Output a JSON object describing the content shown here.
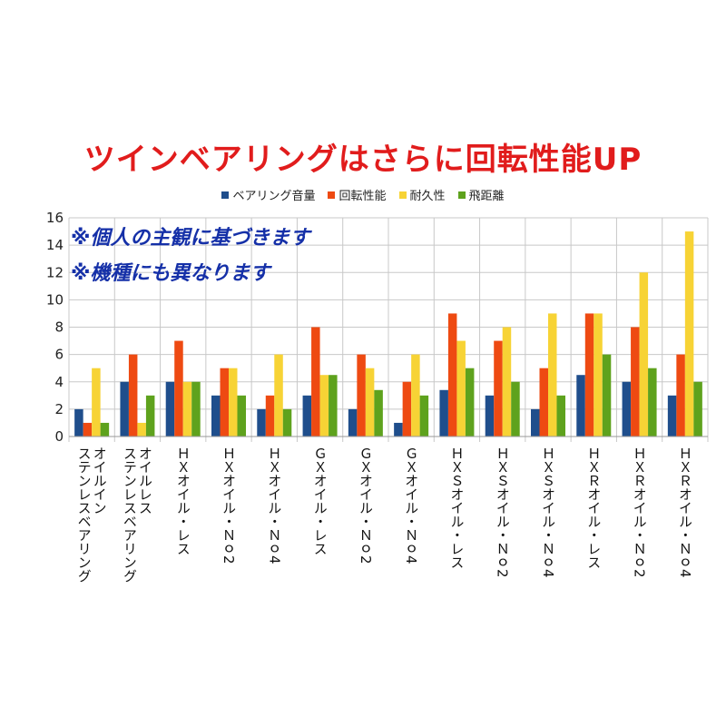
{
  "chart_data": {
    "type": "bar",
    "title": "ツインベアリングはさらに回転性能UP",
    "legend_position": "top",
    "notes": [
      "※個人の主観に基づきます",
      "※機種にも異なります"
    ],
    "ylim": [
      0,
      16
    ],
    "yticks": [
      0,
      2,
      4,
      6,
      8,
      10,
      12,
      14,
      16
    ],
    "grid": true,
    "categories": [
      "オイルイン\nステンレスベアリング",
      "オイルレス\nステンレスベアリング",
      "ＨＸオイル・レス",
      "ＨＸオイル・Ｎｏ2",
      "ＨＸオイル・Ｎｏ4",
      "ＧＸオイル・レス",
      "ＧＸオイル・Ｎｏ2",
      "ＧＸオイル・Ｎｏ4",
      "ＨＸＳオイル・レス",
      "ＨＸＳオイル・Ｎｏ2",
      "ＨＸＳオイル・Ｎｏ4",
      "ＨＸＲオイル・レス",
      "ＨＸＲオイル・Ｎｏ2",
      "ＨＸＲオイル・Ｎｏ4"
    ],
    "series": [
      {
        "name": "ベアリング音量",
        "color": "#1f4e8c",
        "values": [
          2,
          4,
          4,
          3,
          2,
          3,
          2,
          1,
          3.4,
          3,
          2,
          4.5,
          4,
          3
        ]
      },
      {
        "name": "回転性能",
        "color": "#ee4a12",
        "values": [
          1,
          6,
          7,
          5,
          3,
          8,
          6,
          4,
          9,
          7,
          5,
          9,
          8,
          6
        ]
      },
      {
        "name": "耐久性",
        "color": "#f7d335",
        "values": [
          5,
          1,
          4,
          5,
          6,
          4.5,
          5,
          6,
          7,
          8,
          9,
          9,
          12,
          15
        ]
      },
      {
        "name": "飛距離",
        "color": "#5ea21d",
        "values": [
          1,
          3,
          4,
          3,
          2,
          4.5,
          3.4,
          3,
          5,
          4,
          3,
          6,
          5,
          4
        ]
      }
    ]
  }
}
